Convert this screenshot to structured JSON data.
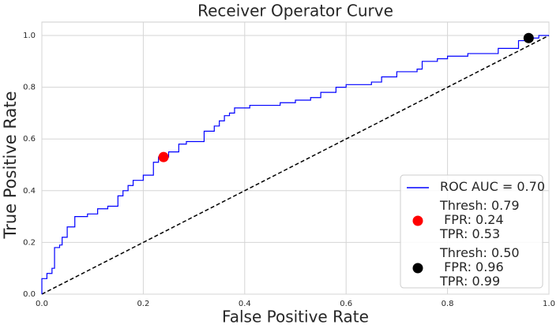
{
  "chart_data": {
    "type": "line",
    "title": "Receiver Operator Curve",
    "x_label": "False Positive Rate",
    "y_label": "True Positive Rate",
    "xlim": [
      0,
      1
    ],
    "ylim": [
      0,
      1
    ],
    "xticks": [
      {
        "value": 0,
        "label": "0.0"
      },
      0.2,
      0.4,
      0.6,
      0.8,
      {
        "value": 1,
        "label": "1.0"
      }
    ],
    "yticks": [
      {
        "value": 0,
        "label": "0.0"
      },
      0.2,
      0.4,
      0.6,
      0.8,
      {
        "value": 1,
        "label": "1.0"
      }
    ],
    "grid": true,
    "legend": "lower right",
    "reference_line": {
      "x": [
        0,
        1
      ],
      "values": [
        0,
        1
      ],
      "color": "#000000",
      "dashed": true
    },
    "series": [
      {
        "name": "ROC AUC = 0.70",
        "type": "line",
        "color": "#0000ff",
        "x": [
          0,
          0,
          0.01,
          0.01,
          0.02,
          0.02,
          0.025,
          0.025,
          0.035,
          0.035,
          0.04,
          0.04,
          0.05,
          0.05,
          0.065,
          0.065,
          0.09,
          0.09,
          0.11,
          0.11,
          0.13,
          0.13,
          0.15,
          0.15,
          0.16,
          0.16,
          0.17,
          0.17,
          0.18,
          0.18,
          0.2,
          0.2,
          0.22,
          0.22,
          0.23,
          0.23,
          0.25,
          0.25,
          0.27,
          0.27,
          0.285,
          0.285,
          0.32,
          0.32,
          0.34,
          0.34,
          0.35,
          0.35,
          0.36,
          0.36,
          0.37,
          0.37,
          0.38,
          0.38,
          0.41,
          0.41,
          0.47,
          0.47,
          0.5,
          0.5,
          0.53,
          0.53,
          0.55,
          0.55,
          0.58,
          0.58,
          0.6,
          0.6,
          0.65,
          0.65,
          0.67,
          0.67,
          0.7,
          0.7,
          0.74,
          0.74,
          0.75,
          0.75,
          0.78,
          0.78,
          0.8,
          0.8,
          0.84,
          0.84,
          0.9,
          0.9,
          0.94,
          0.94,
          0.96,
          0.96,
          0.98,
          0.98,
          1
        ],
        "values": [
          0,
          0.06,
          0.06,
          0.08,
          0.08,
          0.1,
          0.1,
          0.18,
          0.18,
          0.19,
          0.19,
          0.22,
          0.22,
          0.26,
          0.26,
          0.3,
          0.3,
          0.31,
          0.31,
          0.33,
          0.33,
          0.34,
          0.34,
          0.38,
          0.38,
          0.4,
          0.4,
          0.42,
          0.42,
          0.44,
          0.44,
          0.46,
          0.46,
          0.51,
          0.51,
          0.53,
          0.53,
          0.55,
          0.55,
          0.58,
          0.58,
          0.59,
          0.59,
          0.63,
          0.63,
          0.65,
          0.65,
          0.67,
          0.67,
          0.69,
          0.69,
          0.7,
          0.7,
          0.72,
          0.72,
          0.73,
          0.73,
          0.74,
          0.74,
          0.75,
          0.75,
          0.76,
          0.76,
          0.78,
          0.78,
          0.8,
          0.8,
          0.81,
          0.81,
          0.82,
          0.82,
          0.84,
          0.84,
          0.86,
          0.86,
          0.87,
          0.87,
          0.9,
          0.9,
          0.91,
          0.91,
          0.92,
          0.92,
          0.93,
          0.93,
          0.95,
          0.95,
          0.98,
          0.98,
          0.99,
          0.99,
          1,
          1
        ]
      },
      {
        "name": "Thresh: 0.79\n FPR: 0.24\nTPR: 0.53",
        "type": "scatter",
        "color": "#ff0000",
        "x": [
          0.24
        ],
        "values": [
          0.53
        ]
      },
      {
        "name": "Thresh: 0.50\n FPR: 0.96\nTPR: 0.99",
        "type": "scatter",
        "color": "#000000",
        "x": [
          0.96
        ],
        "values": [
          0.99
        ]
      }
    ]
  }
}
